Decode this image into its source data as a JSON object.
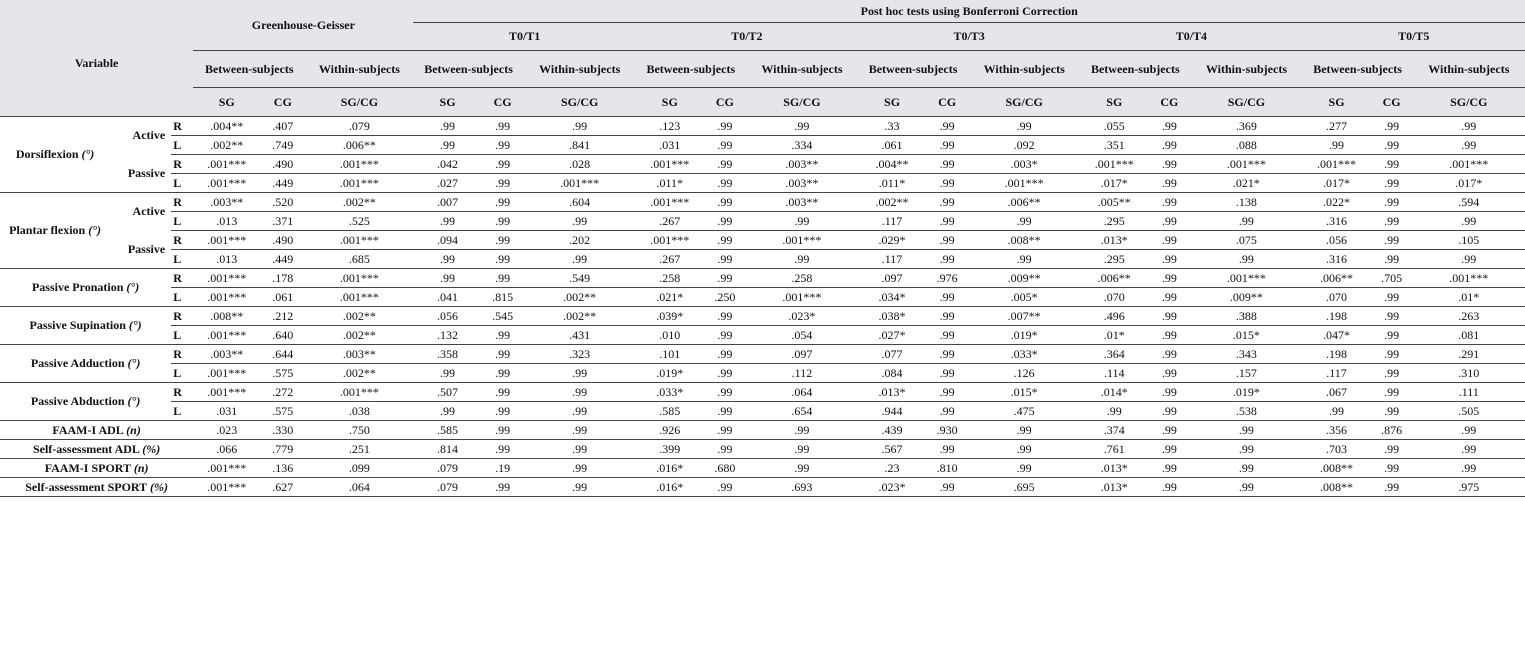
{
  "header": {
    "variable": "Variable",
    "greenhouse": "Greenhouse-Geisser",
    "posthoc": "Post hoc tests using Bonferroni Correction",
    "comparisons": [
      "T0/T1",
      "T0/T2",
      "T0/T3",
      "T0/T4",
      "T0/T5"
    ],
    "sections": [
      {
        "between": "Between-subjects",
        "within": "Within-subjects",
        "cols": [
          "SG",
          "CG",
          "SG/CG"
        ]
      },
      {
        "between": "Between-subjects",
        "within": "Within-subjects",
        "cols": [
          "SG",
          "CG",
          "SG/CG"
        ]
      },
      {
        "between": "Between-subjects",
        "within": "Within-subjects",
        "cols": [
          "SG",
          "CG",
          "SG/CG"
        ]
      },
      {
        "between": "Between-subjects",
        "within": "Within-subjects",
        "cols": [
          "SG",
          "CG",
          "SG/CG"
        ]
      },
      {
        "between": "Between-subjects",
        "within": "Within-subjects",
        "cols": [
          "SG",
          "CG",
          "SG/CG"
        ]
      },
      {
        "between": "Between-subjects",
        "within": "Within-subjects",
        "cols": [
          "SG",
          "CG",
          "SG/CG"
        ]
      }
    ]
  },
  "variables": [
    {
      "name": "Dorsiflexion",
      "unit": "(°)",
      "groups": [
        {
          "label": "Active",
          "sides": [
            {
              "side": "R",
              "values": [
                ".004**",
                ".407",
                ".079",
                ".99",
                ".99",
                ".99",
                ".123",
                ".99",
                ".99",
                ".33",
                ".99",
                ".99",
                ".055",
                ".99",
                ".369",
                ".277",
                ".99",
                ".99"
              ]
            },
            {
              "side": "L",
              "values": [
                ".002**",
                ".749",
                ".006**",
                ".99",
                ".99",
                ".841",
                ".031",
                ".99",
                ".334",
                ".061",
                ".99",
                ".092",
                ".351",
                ".99",
                ".088",
                ".99",
                ".99",
                ".99"
              ]
            }
          ]
        },
        {
          "label": "Passive",
          "sides": [
            {
              "side": "R",
              "values": [
                ".001***",
                ".490",
                ".001***",
                ".042",
                ".99",
                ".028",
                ".001***",
                ".99",
                ".003**",
                ".004**",
                ".99",
                ".003*",
                ".001***",
                ".99",
                ".001***",
                ".001***",
                ".99",
                ".001***"
              ]
            },
            {
              "side": "L",
              "values": [
                ".001***",
                ".449",
                ".001***",
                ".027",
                ".99",
                ".001***",
                ".011*",
                ".99",
                ".003**",
                ".011*",
                ".99",
                ".001***",
                ".017*",
                ".99",
                ".021*",
                ".017*",
                ".99",
                ".017*"
              ]
            }
          ]
        }
      ]
    },
    {
      "name": "Plantar flexion",
      "unit": "(°)",
      "groups": [
        {
          "label": "Active",
          "sides": [
            {
              "side": "R",
              "values": [
                ".003**",
                ".520",
                ".002**",
                ".007",
                ".99",
                ".604",
                ".001***",
                ".99",
                ".003**",
                ".002**",
                ".99",
                ".006**",
                ".005**",
                ".99",
                ".138",
                ".022*",
                ".99",
                ".594"
              ]
            },
            {
              "side": "L",
              "values": [
                ".013",
                ".371",
                ".525",
                ".99",
                ".99",
                ".99",
                ".267",
                ".99",
                ".99",
                ".117",
                ".99",
                ".99",
                ".295",
                ".99",
                ".99",
                ".316",
                ".99",
                ".99"
              ]
            }
          ]
        },
        {
          "label": "Passive",
          "sides": [
            {
              "side": "R",
              "values": [
                ".001***",
                ".490",
                ".001***",
                ".094",
                ".99",
                ".202",
                ".001***",
                ".99",
                ".001***",
                ".029*",
                ".99",
                ".008**",
                ".013*",
                ".99",
                ".075",
                ".056",
                ".99",
                ".105"
              ]
            },
            {
              "side": "L",
              "values": [
                ".013",
                ".449",
                ".685",
                ".99",
                ".99",
                ".99",
                ".267",
                ".99",
                ".99",
                ".117",
                ".99",
                ".99",
                ".295",
                ".99",
                ".99",
                ".316",
                ".99",
                ".99"
              ]
            }
          ]
        }
      ]
    },
    {
      "name": "Passive Pronation",
      "unit": "(°)",
      "sides": [
        {
          "side": "R",
          "values": [
            ".001***",
            ".178",
            ".001***",
            ".99",
            ".99",
            ".549",
            ".258",
            ".99",
            ".258",
            ".097",
            ".976",
            ".009**",
            ".006**",
            ".99",
            ".001***",
            ".006**",
            ".705",
            ".001***"
          ]
        },
        {
          "side": "L",
          "values": [
            ".001***",
            ".061",
            ".001***",
            ".041",
            ".815",
            ".002**",
            ".021*",
            ".250",
            ".001***",
            ".034*",
            ".99",
            ".005*",
            ".070",
            ".99",
            ".009**",
            ".070",
            ".99",
            ".01*"
          ]
        }
      ]
    },
    {
      "name": "Passive Supination",
      "unit": "(°)",
      "sides": [
        {
          "side": "R",
          "values": [
            ".008**",
            ".212",
            ".002**",
            ".056",
            ".545",
            ".002**",
            ".039*",
            ".99",
            ".023*",
            ".038*",
            ".99",
            ".007**",
            ".496",
            ".99",
            ".388",
            ".198",
            ".99",
            ".263"
          ]
        },
        {
          "side": "L",
          "values": [
            ".001***",
            ".640",
            ".002**",
            ".132",
            ".99",
            ".431",
            ".010",
            ".99",
            ".054",
            ".027*",
            ".99",
            ".019*",
            ".01*",
            ".99",
            ".015*",
            ".047*",
            ".99",
            ".081"
          ]
        }
      ]
    },
    {
      "name": "Passive Adduction",
      "unit": "(°)",
      "sides": [
        {
          "side": "R",
          "values": [
            ".003**",
            ".644",
            ".003**",
            ".358",
            ".99",
            ".323",
            ".101",
            ".99",
            ".097",
            ".077",
            ".99",
            ".033*",
            ".364",
            ".99",
            ".343",
            ".198",
            ".99",
            ".291"
          ]
        },
        {
          "side": "L",
          "values": [
            ".001***",
            ".575",
            ".002**",
            ".99",
            ".99",
            ".99",
            ".019*",
            ".99",
            ".112",
            ".084",
            ".99",
            ".126",
            ".114",
            ".99",
            ".157",
            ".117",
            ".99",
            ".310"
          ]
        }
      ]
    },
    {
      "name": "Passive Abduction",
      "unit": "(°)",
      "sides": [
        {
          "side": "R",
          "values": [
            ".001***",
            ".272",
            ".001***",
            ".507",
            ".99",
            ".99",
            ".033*",
            ".99",
            ".064",
            ".013*",
            ".99",
            ".015*",
            ".014*",
            ".99",
            ".019*",
            ".067",
            ".99",
            ".111"
          ]
        },
        {
          "side": "L",
          "values": [
            ".031",
            ".575",
            ".038",
            ".99",
            ".99",
            ".99",
            ".585",
            ".99",
            ".654",
            ".944",
            ".99",
            ".475",
            ".99",
            ".99",
            ".538",
            ".99",
            ".99",
            ".505"
          ]
        }
      ]
    },
    {
      "name": "FAAM-I ADL",
      "unit": "(n)",
      "values": [
        ".023",
        ".330",
        ".750",
        ".585",
        ".99",
        ".99",
        ".926",
        ".99",
        ".99",
        ".439",
        ".930",
        ".99",
        ".374",
        ".99",
        ".99",
        ".356",
        ".876",
        ".99"
      ]
    },
    {
      "name": "Self-assessment ADL",
      "unit": "(%)",
      "values": [
        ".066",
        ".779",
        ".251",
        ".814",
        ".99",
        ".99",
        ".399",
        ".99",
        ".99",
        ".567",
        ".99",
        ".99",
        ".761",
        ".99",
        ".99",
        ".703",
        ".99",
        ".99"
      ]
    },
    {
      "name": "FAAM-I SPORT",
      "unit": "(n)",
      "values": [
        ".001***",
        ".136",
        ".099",
        ".079",
        ".19",
        ".99",
        ".016*",
        ".680",
        ".99",
        ".23",
        ".810",
        ".99",
        ".013*",
        ".99",
        ".99",
        ".008**",
        ".99",
        ".99"
      ]
    },
    {
      "name": "Self-assessment  SPORT",
      "unit": "(%)",
      "values": [
        ".001***",
        ".627",
        ".064",
        ".079",
        ".99",
        ".99",
        ".016*",
        ".99",
        ".693",
        ".023*",
        ".99",
        ".695",
        ".013*",
        ".99",
        ".99",
        ".008**",
        ".99",
        ".975"
      ]
    }
  ]
}
